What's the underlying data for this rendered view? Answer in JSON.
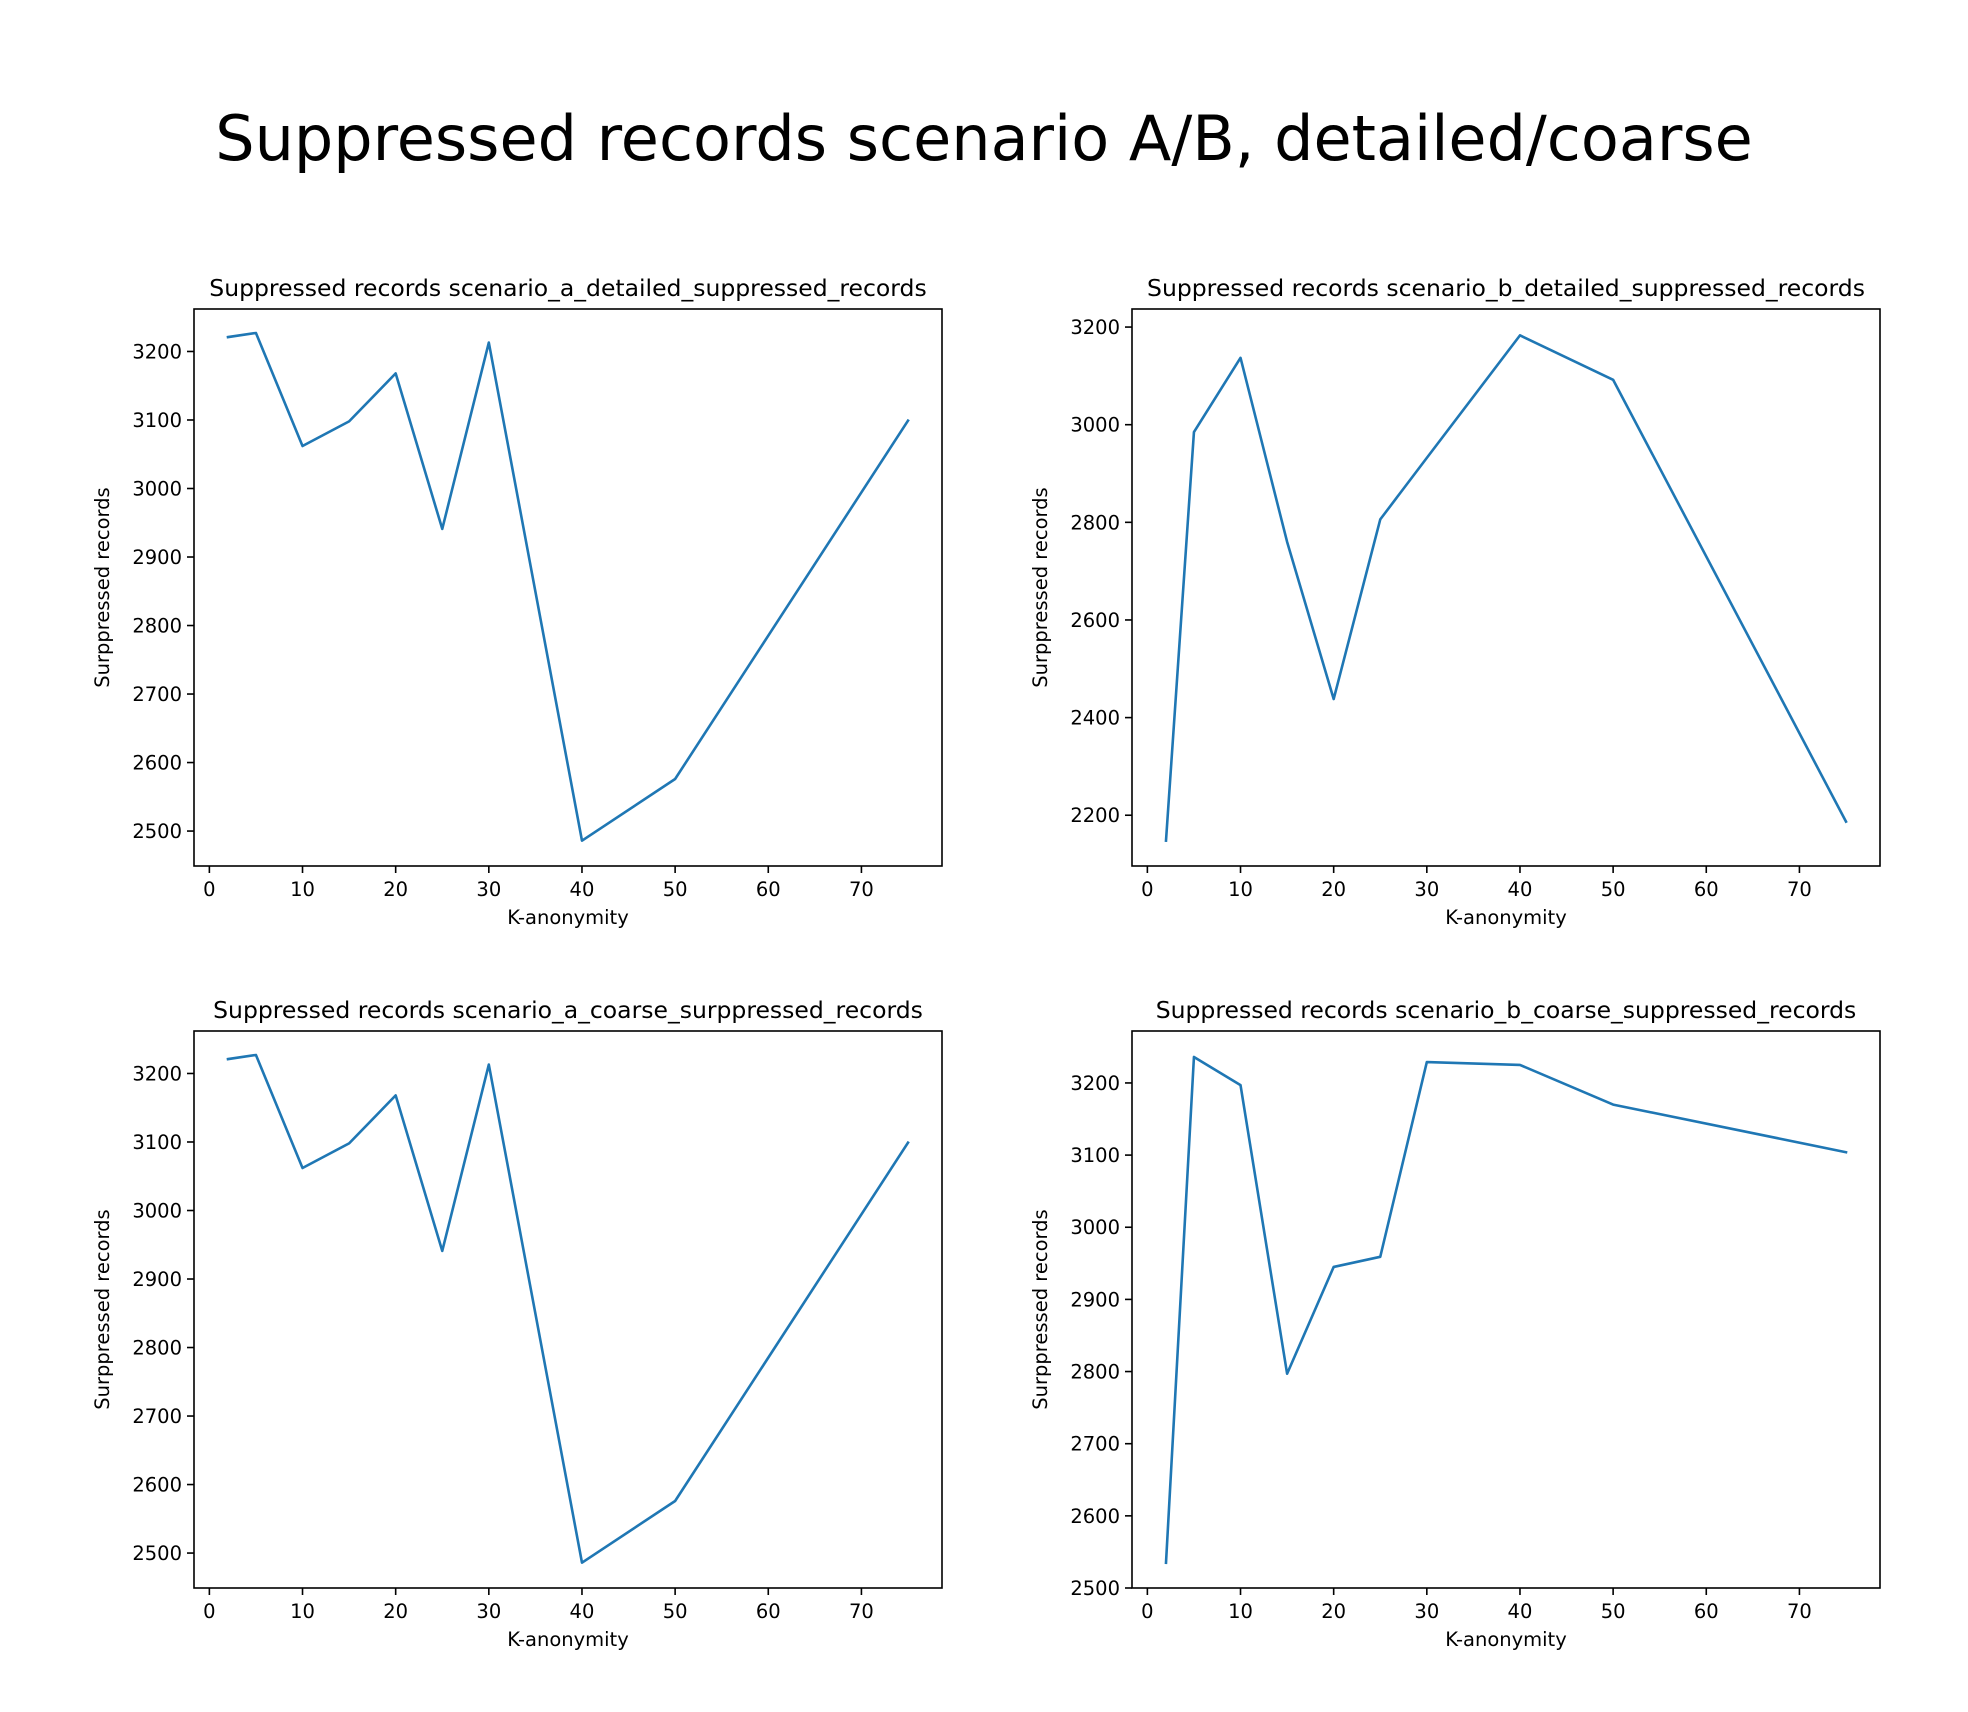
{
  "figure_title": "Suppressed records scenario A/B, detailed/coarse",
  "colors": {
    "line": "#1f77b4"
  },
  "chart_data": [
    {
      "type": "line",
      "title": "Suppressed records scenario_a_detailed_suppressed_records",
      "xlabel": "K-anonymity",
      "ylabel": "Surppressed records",
      "xlim": [
        -1.65,
        78.65
      ],
      "ylim": [
        2449,
        3262
      ],
      "xticks": [
        0,
        10,
        20,
        30,
        40,
        50,
        60,
        70
      ],
      "yticks": [
        2500,
        2600,
        2700,
        2800,
        2900,
        3000,
        3100,
        3200
      ],
      "grid": false,
      "x": [
        2,
        5,
        10,
        15,
        20,
        25,
        30,
        40,
        50,
        75
      ],
      "y": [
        3221,
        3227,
        3062,
        3098,
        3168,
        2941,
        3213,
        2486,
        2576,
        3099
      ]
    },
    {
      "type": "line",
      "title": "Suppressed records scenario_b_detailed_suppressed_records",
      "xlabel": "K-anonymity",
      "ylabel": "Surppressed records",
      "xlim": [
        -1.65,
        78.65
      ],
      "ylim": [
        2096,
        3237
      ],
      "xticks": [
        0,
        10,
        20,
        30,
        40,
        50,
        60,
        70
      ],
      "yticks": [
        2200,
        2400,
        2600,
        2800,
        3000,
        3200
      ],
      "grid": false,
      "x": [
        2,
        5,
        10,
        15,
        20,
        25,
        30,
        40,
        50,
        75
      ],
      "y": [
        2148,
        2985,
        3137,
        2760,
        2438,
        2806,
        2932,
        3183,
        3092,
        2187
      ]
    },
    {
      "type": "line",
      "title": "Suppressed records scenario_a_coarse_surppressed_records",
      "xlabel": "K-anonymity",
      "ylabel": "Surppressed records",
      "xlim": [
        -1.65,
        78.65
      ],
      "ylim": [
        2449,
        3262
      ],
      "xticks": [
        0,
        10,
        20,
        30,
        40,
        50,
        60,
        70
      ],
      "yticks": [
        2500,
        2600,
        2700,
        2800,
        2900,
        3000,
        3100,
        3200
      ],
      "grid": false,
      "x": [
        2,
        5,
        10,
        15,
        20,
        25,
        30,
        40,
        50,
        75
      ],
      "y": [
        3221,
        3227,
        3062,
        3098,
        3168,
        2941,
        3213,
        2486,
        2576,
        3099
      ]
    },
    {
      "type": "line",
      "title": "Suppressed records scenario_b_coarse_suppressed_records",
      "xlabel": "K-anonymity",
      "ylabel": "Surppressed records",
      "xlim": [
        -1.65,
        78.65
      ],
      "ylim": [
        2500,
        3272
      ],
      "xticks": [
        0,
        10,
        20,
        30,
        40,
        50,
        60,
        70
      ],
      "yticks": [
        2500,
        2600,
        2700,
        2800,
        2900,
        3000,
        3100,
        3200
      ],
      "grid": false,
      "x": [
        2,
        5,
        10,
        15,
        20,
        25,
        30,
        40,
        50,
        75
      ],
      "y": [
        2535,
        3236,
        3197,
        2797,
        2945,
        2959,
        3229,
        3225,
        3170,
        3104
      ]
    }
  ]
}
